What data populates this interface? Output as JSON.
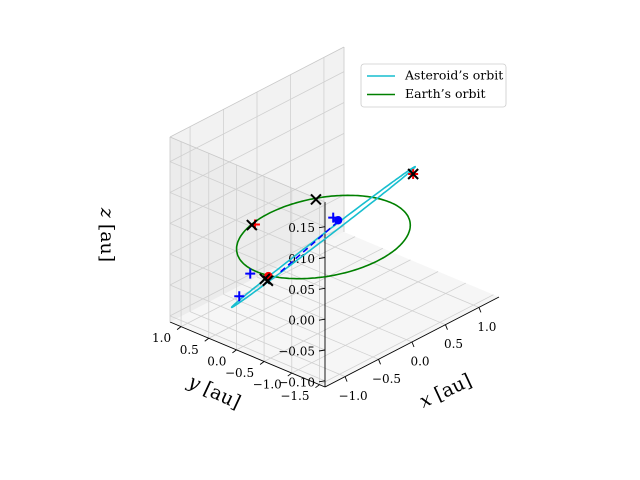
{
  "chart_data": {
    "type": "line",
    "projection": "3d",
    "title": "",
    "xlabel": "x [au]",
    "ylabel": "y [au]",
    "zlabel": "z [au]",
    "xlim": [
      -1.3,
      1.3
    ],
    "ylim": [
      -1.6,
      1.2
    ],
    "zlim": [
      -0.11,
      0.19
    ],
    "xticks": [
      {
        "value": -1.0,
        "label": "−1.0"
      },
      {
        "value": -0.5,
        "label": "−0.5"
      },
      {
        "value": 0.0,
        "label": "0.0"
      },
      {
        "value": 0.5,
        "label": "0.5"
      },
      {
        "value": 1.0,
        "label": "1.0"
      }
    ],
    "yticks": [
      {
        "value": 1.0,
        "label": "1.0"
      },
      {
        "value": 0.5,
        "label": "0.5"
      },
      {
        "value": 0.0,
        "label": "0.0"
      },
      {
        "value": -0.5,
        "label": "−0.5"
      },
      {
        "value": -1.0,
        "label": "−1.0"
      },
      {
        "value": -1.5,
        "label": "−1.5"
      }
    ],
    "zticks": [
      {
        "value": 0.15,
        "label": "0.15"
      },
      {
        "value": 0.1,
        "label": "0.10"
      },
      {
        "value": 0.05,
        "label": "0.05"
      },
      {
        "value": 0.0,
        "label": "0.00"
      },
      {
        "value": -0.05,
        "label": "−0.05"
      },
      {
        "value": -0.1,
        "label": "−0.10"
      }
    ],
    "grid": true,
    "legend_position": "upper-right",
    "series": [
      {
        "name": "Asteroid’s orbit",
        "color": "#17becf",
        "kind": "ellipse",
        "inclination_deg": 7.5,
        "perihelion": [
          -0.75,
          0.75,
          -0.1
        ],
        "aphelion": [
          0.75,
          -0.75,
          0.1
        ],
        "semi_minor": 0.09
      },
      {
        "name": "Earth’s orbit",
        "color": "#008000",
        "kind": "circle",
        "radius": 1.0
      }
    ],
    "annotations": {
      "blue_dashed_segment": {
        "color": "#0000ff",
        "from": [
          -0.35,
          0.35,
          -0.05
        ],
        "to": [
          0.1,
          -0.1,
          0.02
        ]
      },
      "red_dots": [
        {
          "color": "#ff0000",
          "position": [
            -0.45,
            0.45,
            -0.055
          ]
        }
      ],
      "blue_dots": [
        {
          "color": "#0000ff",
          "position": [
            0.12,
            -0.12,
            0.025
          ]
        }
      ],
      "black_crosses": [
        {
          "color": "#000000",
          "position": [
            -0.78,
            0.35,
            0.05
          ]
        },
        {
          "color": "#000000",
          "position": [
            0.72,
            -0.75,
            0.09
          ]
        },
        {
          "color": "#000000",
          "position": [
            0.55,
            0.8,
            0.0
          ]
        },
        {
          "color": "#000000",
          "position": [
            -0.42,
            0.55,
            -0.065
          ]
        },
        {
          "color": "#000000",
          "position": [
            -0.4,
            0.52,
            -0.068
          ]
        }
      ],
      "red_pluses": [
        {
          "color": "#ff0000",
          "position": [
            -0.75,
            0.33,
            0.05
          ]
        },
        {
          "color": "#ff0000",
          "position": [
            0.72,
            -0.75,
            0.09
          ]
        }
      ],
      "blue_pluses": [
        {
          "color": "#0000ff",
          "position": [
            -0.68,
            0.5,
            -0.04
          ]
        },
        {
          "color": "#0000ff",
          "position": [
            -0.72,
            0.65,
            -0.08
          ]
        },
        {
          "color": "#0000ff",
          "position": [
            0.08,
            -0.08,
            0.03
          ]
        }
      ]
    }
  }
}
